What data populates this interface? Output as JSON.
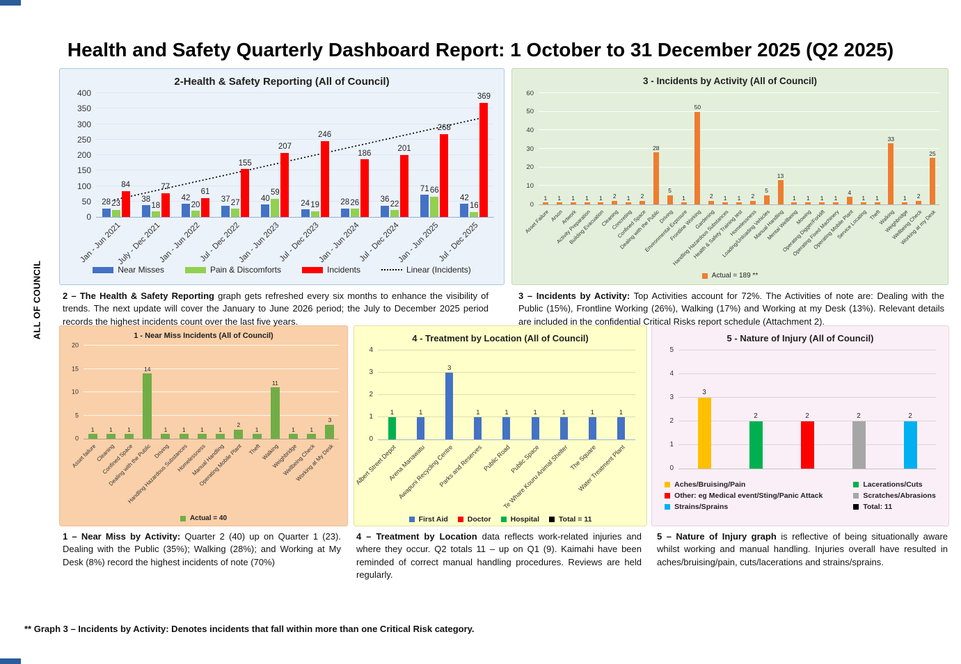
{
  "page": {
    "title": "Health and Safety Quarterly Dashboard Report: 1 October to 31 December 2025 (Q2 2025)",
    "side_label": "ALL OF COUNCIL",
    "footnote": "** Graph 3 – Incidents by Activity: Denotes incidents that fall within more than one Critical Risk category."
  },
  "captions": {
    "c2": {
      "lead": "2 – The Health & Safety Reporting",
      "body": " graph gets refreshed every six months to enhance the visibility of trends. The next update will cover the January to June 2026 period; the July to December 2025 period records the highest incidents count over the last five years."
    },
    "c3": {
      "lead": "3 – Incidents by Activity:",
      "body": " Top Activities account for 72%. The Activities of note are: Dealing with the Public (15%), Frontline Working (26%), Walking (17%) and Working at my Desk (13%). Relevant details are included in the confidential Critical Risks report schedule (Attachment 2)."
    },
    "c1": {
      "lead": "1 – Near Miss by Activity:",
      "body": " Quarter 2 (40) up on Quarter 1 (23). Dealing with the Public (35%); Walking (28%); and Working at My Desk (8%) record the highest incidents of note (70%)"
    },
    "c4": {
      "lead": "4 – Treatment by Location",
      "body": " data reflects work-related injuries and where they occur. Q2 totals 11 – up on Q1 (9). Kaimahi have been reminded of correct manual handling procedures. Reviews are held regularly."
    },
    "c5": {
      "lead": "5 – Nature of Injury graph",
      "body": " is reflective of being situationally aware whilst working and manual handling. Injuries overall have resulted in aches/bruising/pain, cuts/lacerations and strains/sprains."
    }
  },
  "chart_data": [
    {
      "id": "hs-reporting",
      "type": "bar",
      "title": "2-Health & Safety Reporting (All of Council)",
      "categories": [
        "Jan - Jun 2021",
        "July - Dec 2021",
        "Jan - Jun 2022",
        "Jul - Dec 2022",
        "Jan - Jun 2023",
        "Jul - Dec 2023",
        "Jan - Jun 2024",
        "Jul - Dec 2024",
        "Jan - Jun 2025",
        "Jul - Dec 2025"
      ],
      "series": [
        {
          "name": "Near Misses",
          "color": "#4472C4",
          "values": [
            28,
            38,
            42,
            37,
            40,
            24,
            28,
            36,
            71,
            42
          ]
        },
        {
          "name": "Pain & Discomforts",
          "color": "#92D050",
          "values": [
            23,
            18,
            20,
            27,
            59,
            19,
            26,
            22,
            66,
            16
          ]
        },
        {
          "name": "Incidents",
          "color": "#FF0000",
          "values": [
            84,
            77,
            61,
            155,
            207,
            246,
            186,
            201,
            268,
            369
          ]
        }
      ],
      "trendline": {
        "name": "Linear (Incidents)",
        "series": "Incidents",
        "style": "dotted",
        "color": "#000000"
      },
      "ylim": [
        0,
        400
      ],
      "ytick": 50,
      "grid": true,
      "legend_position": "bottom",
      "legend": [
        {
          "label": "Near Misses",
          "color": "#4472C4",
          "swatch": "bar"
        },
        {
          "label": "Pain & Discomforts",
          "color": "#92D050",
          "swatch": "bar"
        },
        {
          "label": "Incidents",
          "color": "#FF0000",
          "swatch": "bar"
        },
        {
          "label": "Linear (Incidents)",
          "color": "#000000",
          "swatch": "dotted"
        }
      ]
    },
    {
      "id": "incidents-by-activity",
      "type": "bar",
      "title": "3 - Incidents by Activity (All of Council)",
      "categories": [
        "Asset Failure",
        "Arson",
        "Artwork",
        "Activity Preparation",
        "Building Evacuation",
        "Cleaning",
        "Concreting",
        "Confined Space",
        "Dealing with the Public",
        "Driving",
        "Environmental Exposure",
        "Frontline Working",
        "Gardening",
        "Handling Hazardous Substances",
        "Health & Safety Training test",
        "Homelessness",
        "Loading/Unloading Vehicles",
        "Manual Handling",
        "Mental Wellbeing",
        "Mowing",
        "Operating Digger/Forklift",
        "Operating Fixed Machinery",
        "Operating Mobile Plant",
        "Service Locating",
        "Theft",
        "Walking",
        "Weighbridge",
        "Wellbeing Check",
        "Working at my Desk"
      ],
      "values": [
        1,
        1,
        1,
        1,
        1,
        2,
        1,
        2,
        28,
        5,
        1,
        50,
        2,
        1,
        1,
        2,
        5,
        13,
        1,
        1,
        1,
        1,
        4,
        1,
        1,
        33,
        1,
        2,
        25
      ],
      "color": "#ED7D31",
      "ylim": [
        0,
        60
      ],
      "ytick": 10,
      "grid": true,
      "legend_position": "bottom",
      "legend": [
        {
          "label": "Actual =  189 **",
          "color": "#ED7D31",
          "swatch": "box"
        }
      ]
    },
    {
      "id": "near-miss",
      "type": "bar",
      "title": "1 - Near Miss Incidents (All of Council)",
      "categories": [
        "Asset failure",
        "Cleaning",
        "Confined Space",
        "Dealing with the Public",
        "Driving",
        "Handling Hazardous Substances",
        "Homelessness",
        "Manual Handling",
        "Operating Mobile Plant",
        "Theft",
        "Walking",
        "Weighbridge",
        "Wellbeing Check",
        "Working at My Desk"
      ],
      "values": [
        1,
        1,
        1,
        14,
        1,
        1,
        1,
        1,
        2,
        1,
        11,
        1,
        1,
        3
      ],
      "color": "#70AD47",
      "ylim": [
        0,
        20
      ],
      "ytick": 5,
      "grid": true,
      "legend_position": "bottom",
      "legend": [
        {
          "label": "Actual = 40",
          "color": "#70AD47",
          "swatch": "box"
        }
      ]
    },
    {
      "id": "treatment-by-location",
      "type": "bar",
      "title": "4 - Treatment by Location (All of Council)",
      "categories": [
        "Albert Street Depot",
        "Arena Manawatu",
        "Awapuni Recycling Centre",
        "Parks and Reserves",
        "Public Road",
        "Public Space",
        "Te Whare Kouru Animal Shelter",
        "The Square",
        "Water Treatment Plant"
      ],
      "values": [
        1,
        1,
        3,
        1,
        1,
        1,
        1,
        1,
        1
      ],
      "bar_colors": [
        "#00B050",
        "#4472C4",
        "#4472C4",
        "#4472C4",
        "#4472C4",
        "#4472C4",
        "#4472C4",
        "#4472C4",
        "#4472C4"
      ],
      "ylim": [
        0,
        4
      ],
      "ytick": 1,
      "grid": true,
      "legend_position": "bottom",
      "legend": [
        {
          "label": "First Aid",
          "color": "#4472C4",
          "swatch": "box"
        },
        {
          "label": "Doctor",
          "color": "#FF0000",
          "swatch": "box"
        },
        {
          "label": "Hospital",
          "color": "#00B050",
          "swatch": "box"
        },
        {
          "label": "Total = 11",
          "color": "#000000",
          "swatch": "box"
        }
      ]
    },
    {
      "id": "nature-of-injury",
      "type": "bar",
      "title": "5 - Nature of Injury (All of Council)",
      "categories": [
        "Aches/Bruising/Pain",
        "Lacerations/Cuts",
        "Other: eg Medical event/Sting/Panic Attack",
        "Scratches/Abrasions",
        "Strains/Sprains"
      ],
      "values": [
        3,
        2,
        2,
        2,
        2
      ],
      "bar_colors": [
        "#FFC000",
        "#00B050",
        "#FF0000",
        "#A6A6A6",
        "#00B0F0"
      ],
      "ylim": [
        0,
        5
      ],
      "ytick": 1,
      "grid": true,
      "hide_x_labels": true,
      "legend_position": "bottom",
      "legend": [
        {
          "label": "Aches/Bruising/Pain",
          "color": "#FFC000",
          "swatch": "box"
        },
        {
          "label": "Lacerations/Cuts",
          "color": "#00B050",
          "swatch": "box"
        },
        {
          "label": "Other: eg Medical event/Sting/Panic Attack",
          "color": "#FF0000",
          "swatch": "box"
        },
        {
          "label": "Scratches/Abrasions",
          "color": "#A6A6A6",
          "swatch": "box"
        },
        {
          "label": "Strains/Sprains",
          "color": "#00B0F0",
          "swatch": "box"
        },
        {
          "label": "Total: 11",
          "color": "#000000",
          "swatch": "box"
        }
      ]
    }
  ]
}
